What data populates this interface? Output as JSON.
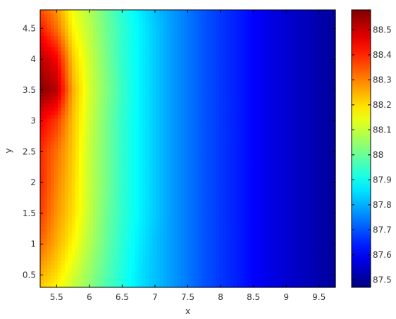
{
  "chart_data": {
    "type": "heatmap",
    "title": "",
    "xlabel": "x",
    "ylabel": "y",
    "xlim": [
      5.25,
      9.75
    ],
    "ylim": [
      0.3,
      4.8
    ],
    "x_ticks": [
      5.5,
      6,
      6.5,
      7,
      7.5,
      8,
      8.5,
      9,
      9.5
    ],
    "x_tick_labels": [
      "5.5",
      "6",
      "6.5",
      "7",
      "7.5",
      "8",
      "8.5",
      "9",
      "9.5"
    ],
    "y_ticks": [
      0.5,
      1,
      1.5,
      2,
      2.5,
      3,
      3.5,
      4,
      4.5
    ],
    "y_tick_labels": [
      "0.5",
      "1",
      "1.5",
      "2",
      "2.5",
      "3",
      "3.5",
      "4",
      "4.5"
    ],
    "colormap": "jet",
    "colorbar": {
      "clim": [
        87.47,
        88.58
      ],
      "ticks": [
        87.5,
        87.6,
        87.7,
        87.8,
        87.9,
        88,
        88.1,
        88.2,
        88.3,
        88.4,
        88.5
      ],
      "tick_labels": [
        "87.5",
        "87.6",
        "87.7",
        "87.8",
        "87.9",
        "88",
        "88.1",
        "88.2",
        "88.3",
        "88.4",
        "88.5"
      ]
    },
    "grid": false,
    "x": [
      5.25,
      5.5,
      5.75,
      6.0,
      6.25,
      6.5,
      6.75,
      7.0,
      7.25,
      7.5,
      7.75,
      8.0,
      8.25,
      8.5,
      8.75,
      9.0,
      9.25,
      9.5,
      9.75
    ],
    "y": [
      4.8,
      4.5,
      4.0,
      3.5,
      3.0,
      2.5,
      2.0,
      1.5,
      1.0,
      0.5,
      0.3
    ],
    "z": [
      [
        88.36,
        88.28,
        88.15,
        88.08,
        88.0,
        87.93,
        87.87,
        87.82,
        87.78,
        87.74,
        87.7,
        87.67,
        87.64,
        87.61,
        87.58,
        87.56,
        87.54,
        87.52,
        87.5
      ],
      [
        88.42,
        88.32,
        88.17,
        88.09,
        88.01,
        87.94,
        87.88,
        87.83,
        87.78,
        87.74,
        87.7,
        87.67,
        87.64,
        87.61,
        87.58,
        87.56,
        87.54,
        87.52,
        87.5
      ],
      [
        88.52,
        88.45,
        88.22,
        88.11,
        88.02,
        87.94,
        87.88,
        87.83,
        87.78,
        87.74,
        87.7,
        87.67,
        87.64,
        87.61,
        87.58,
        87.56,
        87.54,
        87.52,
        87.5
      ],
      [
        88.57,
        88.52,
        88.25,
        88.12,
        88.03,
        87.95,
        87.88,
        87.83,
        87.78,
        87.74,
        87.7,
        87.67,
        87.64,
        87.61,
        87.58,
        87.56,
        87.54,
        87.52,
        87.5
      ],
      [
        88.45,
        88.38,
        88.23,
        88.11,
        88.02,
        87.94,
        87.88,
        87.83,
        87.78,
        87.74,
        87.7,
        87.67,
        87.64,
        87.61,
        87.58,
        87.56,
        87.54,
        87.52,
        87.5
      ],
      [
        88.4,
        88.32,
        88.22,
        88.1,
        88.02,
        87.94,
        87.88,
        87.83,
        87.78,
        87.74,
        87.7,
        87.67,
        87.64,
        87.61,
        87.58,
        87.56,
        87.54,
        87.52,
        87.5
      ],
      [
        88.4,
        88.3,
        88.21,
        88.1,
        88.02,
        87.94,
        87.88,
        87.83,
        87.78,
        87.74,
        87.7,
        87.67,
        87.64,
        87.61,
        87.58,
        87.56,
        87.54,
        87.52,
        87.5
      ],
      [
        88.38,
        88.28,
        88.2,
        88.1,
        88.01,
        87.94,
        87.88,
        87.83,
        87.78,
        87.74,
        87.7,
        87.67,
        87.64,
        87.61,
        87.58,
        87.56,
        87.54,
        87.52,
        87.5
      ],
      [
        88.33,
        88.25,
        88.17,
        88.08,
        88.0,
        87.93,
        87.87,
        87.82,
        87.78,
        87.74,
        87.7,
        87.67,
        87.64,
        87.61,
        87.58,
        87.56,
        87.54,
        87.52,
        87.5
      ],
      [
        88.25,
        88.2,
        88.12,
        88.05,
        87.98,
        87.92,
        87.86,
        87.82,
        87.78,
        87.74,
        87.7,
        87.67,
        87.64,
        87.61,
        87.58,
        87.56,
        87.54,
        87.52,
        87.5
      ],
      [
        88.22,
        88.17,
        88.1,
        88.04,
        87.97,
        87.92,
        87.86,
        87.82,
        87.78,
        87.74,
        87.7,
        87.67,
        87.64,
        87.61,
        87.58,
        87.56,
        87.54,
        87.52,
        87.5
      ]
    ]
  }
}
